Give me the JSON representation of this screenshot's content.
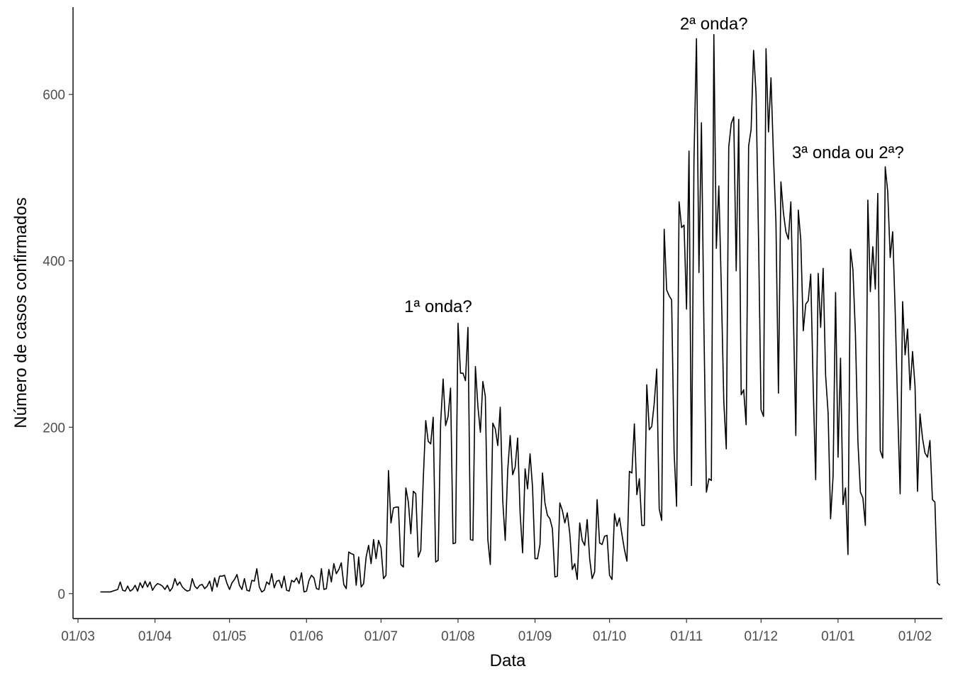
{
  "chart_data": {
    "type": "line",
    "xlabel": "Data",
    "ylabel": "Número de casos confirmados",
    "xlim": [
      "2020-02-28",
      "2021-02-12"
    ],
    "ylim": [
      -30,
      705
    ],
    "grid": false,
    "x_ticks": [
      {
        "date": "2020-03-01",
        "label": "01/03"
      },
      {
        "date": "2020-04-01",
        "label": "01/04"
      },
      {
        "date": "2020-05-01",
        "label": "01/05"
      },
      {
        "date": "2020-06-01",
        "label": "01/06"
      },
      {
        "date": "2020-07-01",
        "label": "01/07"
      },
      {
        "date": "2020-08-01",
        "label": "01/08"
      },
      {
        "date": "2020-09-01",
        "label": "01/09"
      },
      {
        "date": "2020-10-01",
        "label": "01/10"
      },
      {
        "date": "2020-11-01",
        "label": "01/11"
      },
      {
        "date": "2020-12-01",
        "label": "01/12"
      },
      {
        "date": "2021-01-01",
        "label": "01/01"
      },
      {
        "date": "2021-02-01",
        "label": "01/02"
      }
    ],
    "y_ticks": [
      0,
      200,
      400,
      600
    ],
    "annotations": [
      {
        "text": "1ª onda?",
        "date": "2020-07-24",
        "y": 345
      },
      {
        "text": "2ª onda?",
        "date": "2020-11-12",
        "y": 685
      },
      {
        "text": "3ª onda ou 2ª?",
        "date": "2021-01-05",
        "y": 530
      }
    ],
    "series": [
      {
        "start_date": "2020-03-10",
        "values": [
          2,
          2,
          2,
          2,
          2,
          3,
          4,
          5,
          14,
          4,
          3,
          9,
          3,
          5,
          10,
          3,
          13,
          7,
          15,
          8,
          14,
          4,
          9,
          12,
          11,
          9,
          5,
          10,
          3,
          7,
          18,
          10,
          14,
          8,
          5,
          3,
          4,
          18,
          9,
          6,
          10,
          11,
          6,
          9,
          15,
          3,
          19,
          8,
          21,
          21,
          22,
          12,
          5,
          13,
          17,
          23,
          10,
          5,
          18,
          4,
          3,
          16,
          15,
          30,
          8,
          2,
          4,
          14,
          11,
          24,
          7,
          15,
          16,
          7,
          21,
          4,
          3,
          16,
          14,
          19,
          12,
          25,
          2,
          3,
          16,
          22,
          19,
          6,
          5,
          30,
          5,
          6,
          29,
          14,
          36,
          24,
          29,
          37,
          11,
          6,
          50,
          48,
          47,
          10,
          44,
          8,
          12,
          44,
          58,
          36,
          65,
          42,
          64,
          55,
          18,
          22,
          148,
          85,
          103,
          104,
          104,
          35,
          32,
          127,
          110,
          72,
          123,
          120,
          44,
          52,
          137,
          208,
          183,
          180,
          212,
          38,
          40,
          205,
          258,
          202,
          213,
          247,
          60,
          61,
          325,
          265,
          265,
          256,
          320,
          65,
          64,
          273,
          225,
          194,
          255,
          237,
          65,
          35,
          205,
          198,
          178,
          224,
          112,
          64,
          148,
          190,
          143,
          152,
          187,
          97,
          49,
          150,
          126,
          168,
          128,
          42,
          42,
          59,
          145,
          109,
          94,
          90,
          78,
          20,
          21,
          109,
          100,
          85,
          97,
          72,
          29,
          36,
          17,
          85,
          64,
          58,
          89,
          42,
          18,
          26,
          113,
          61,
          59,
          69,
          70,
          22,
          17,
          96,
          81,
          91,
          71,
          53,
          39,
          147,
          145,
          204,
          119,
          138,
          82,
          82,
          251,
          197,
          201,
          229,
          270,
          102,
          88,
          438,
          365,
          358,
          353,
          170,
          105,
          471,
          440,
          443,
          342,
          532,
          130,
          522,
          667,
          386,
          566,
          321,
          122,
          138,
          136,
          672,
          415,
          490,
          368,
          231,
          174,
          537,
          565,
          573,
          388,
          570,
          239,
          245,
          203,
          538,
          558,
          653,
          600,
          425,
          221,
          213,
          655,
          555,
          620,
          526,
          446,
          241,
          495,
          458,
          435,
          426,
          471,
          340,
          190,
          461,
          425,
          316,
          348,
          352,
          384,
          248,
          137,
          385,
          320,
          391,
          262,
          217,
          90,
          141,
          362,
          164,
          283,
          107,
          127,
          47,
          414,
          389,
          312,
          183,
          122,
          115,
          82,
          473,
          363,
          417,
          366,
          481,
          172,
          163,
          513,
          483,
          404,
          435,
          340,
          223,
          120,
          351,
          287,
          318,
          245,
          291,
          249,
          123,
          216,
          187,
          169,
          164,
          184,
          113,
          110,
          13,
          10
        ]
      }
    ]
  }
}
